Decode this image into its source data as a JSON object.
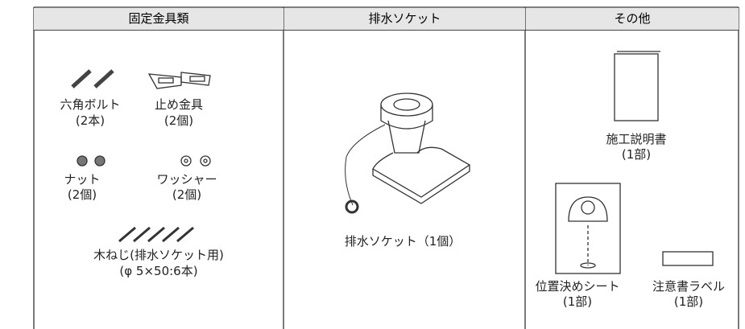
{
  "header": {
    "columns": [
      "固定金具類",
      "排水ソケット",
      "その他"
    ]
  },
  "columns": [
    {
      "items": [
        {
          "name": "六角ボルト",
          "qty": "(2本)"
        },
        {
          "name": "止め金具",
          "qty": "(2個)"
        },
        {
          "name": "ナット",
          "qty": "(2個)"
        },
        {
          "name": "ワッシャー",
          "qty": "(2個)"
        },
        {
          "name": "木ねじ(排水ソケット用)",
          "qty": "(φ 5×50:6本)"
        }
      ]
    },
    {
      "items": [
        {
          "name": "排水ソケット（1個）"
        }
      ]
    },
    {
      "items": [
        {
          "name": "施工説明書",
          "qty": "(1部)"
        },
        {
          "name": "位置決めシート",
          "qty": "(1部)"
        },
        {
          "name": "注意書ラベル",
          "qty": "(1部)"
        }
      ]
    }
  ]
}
